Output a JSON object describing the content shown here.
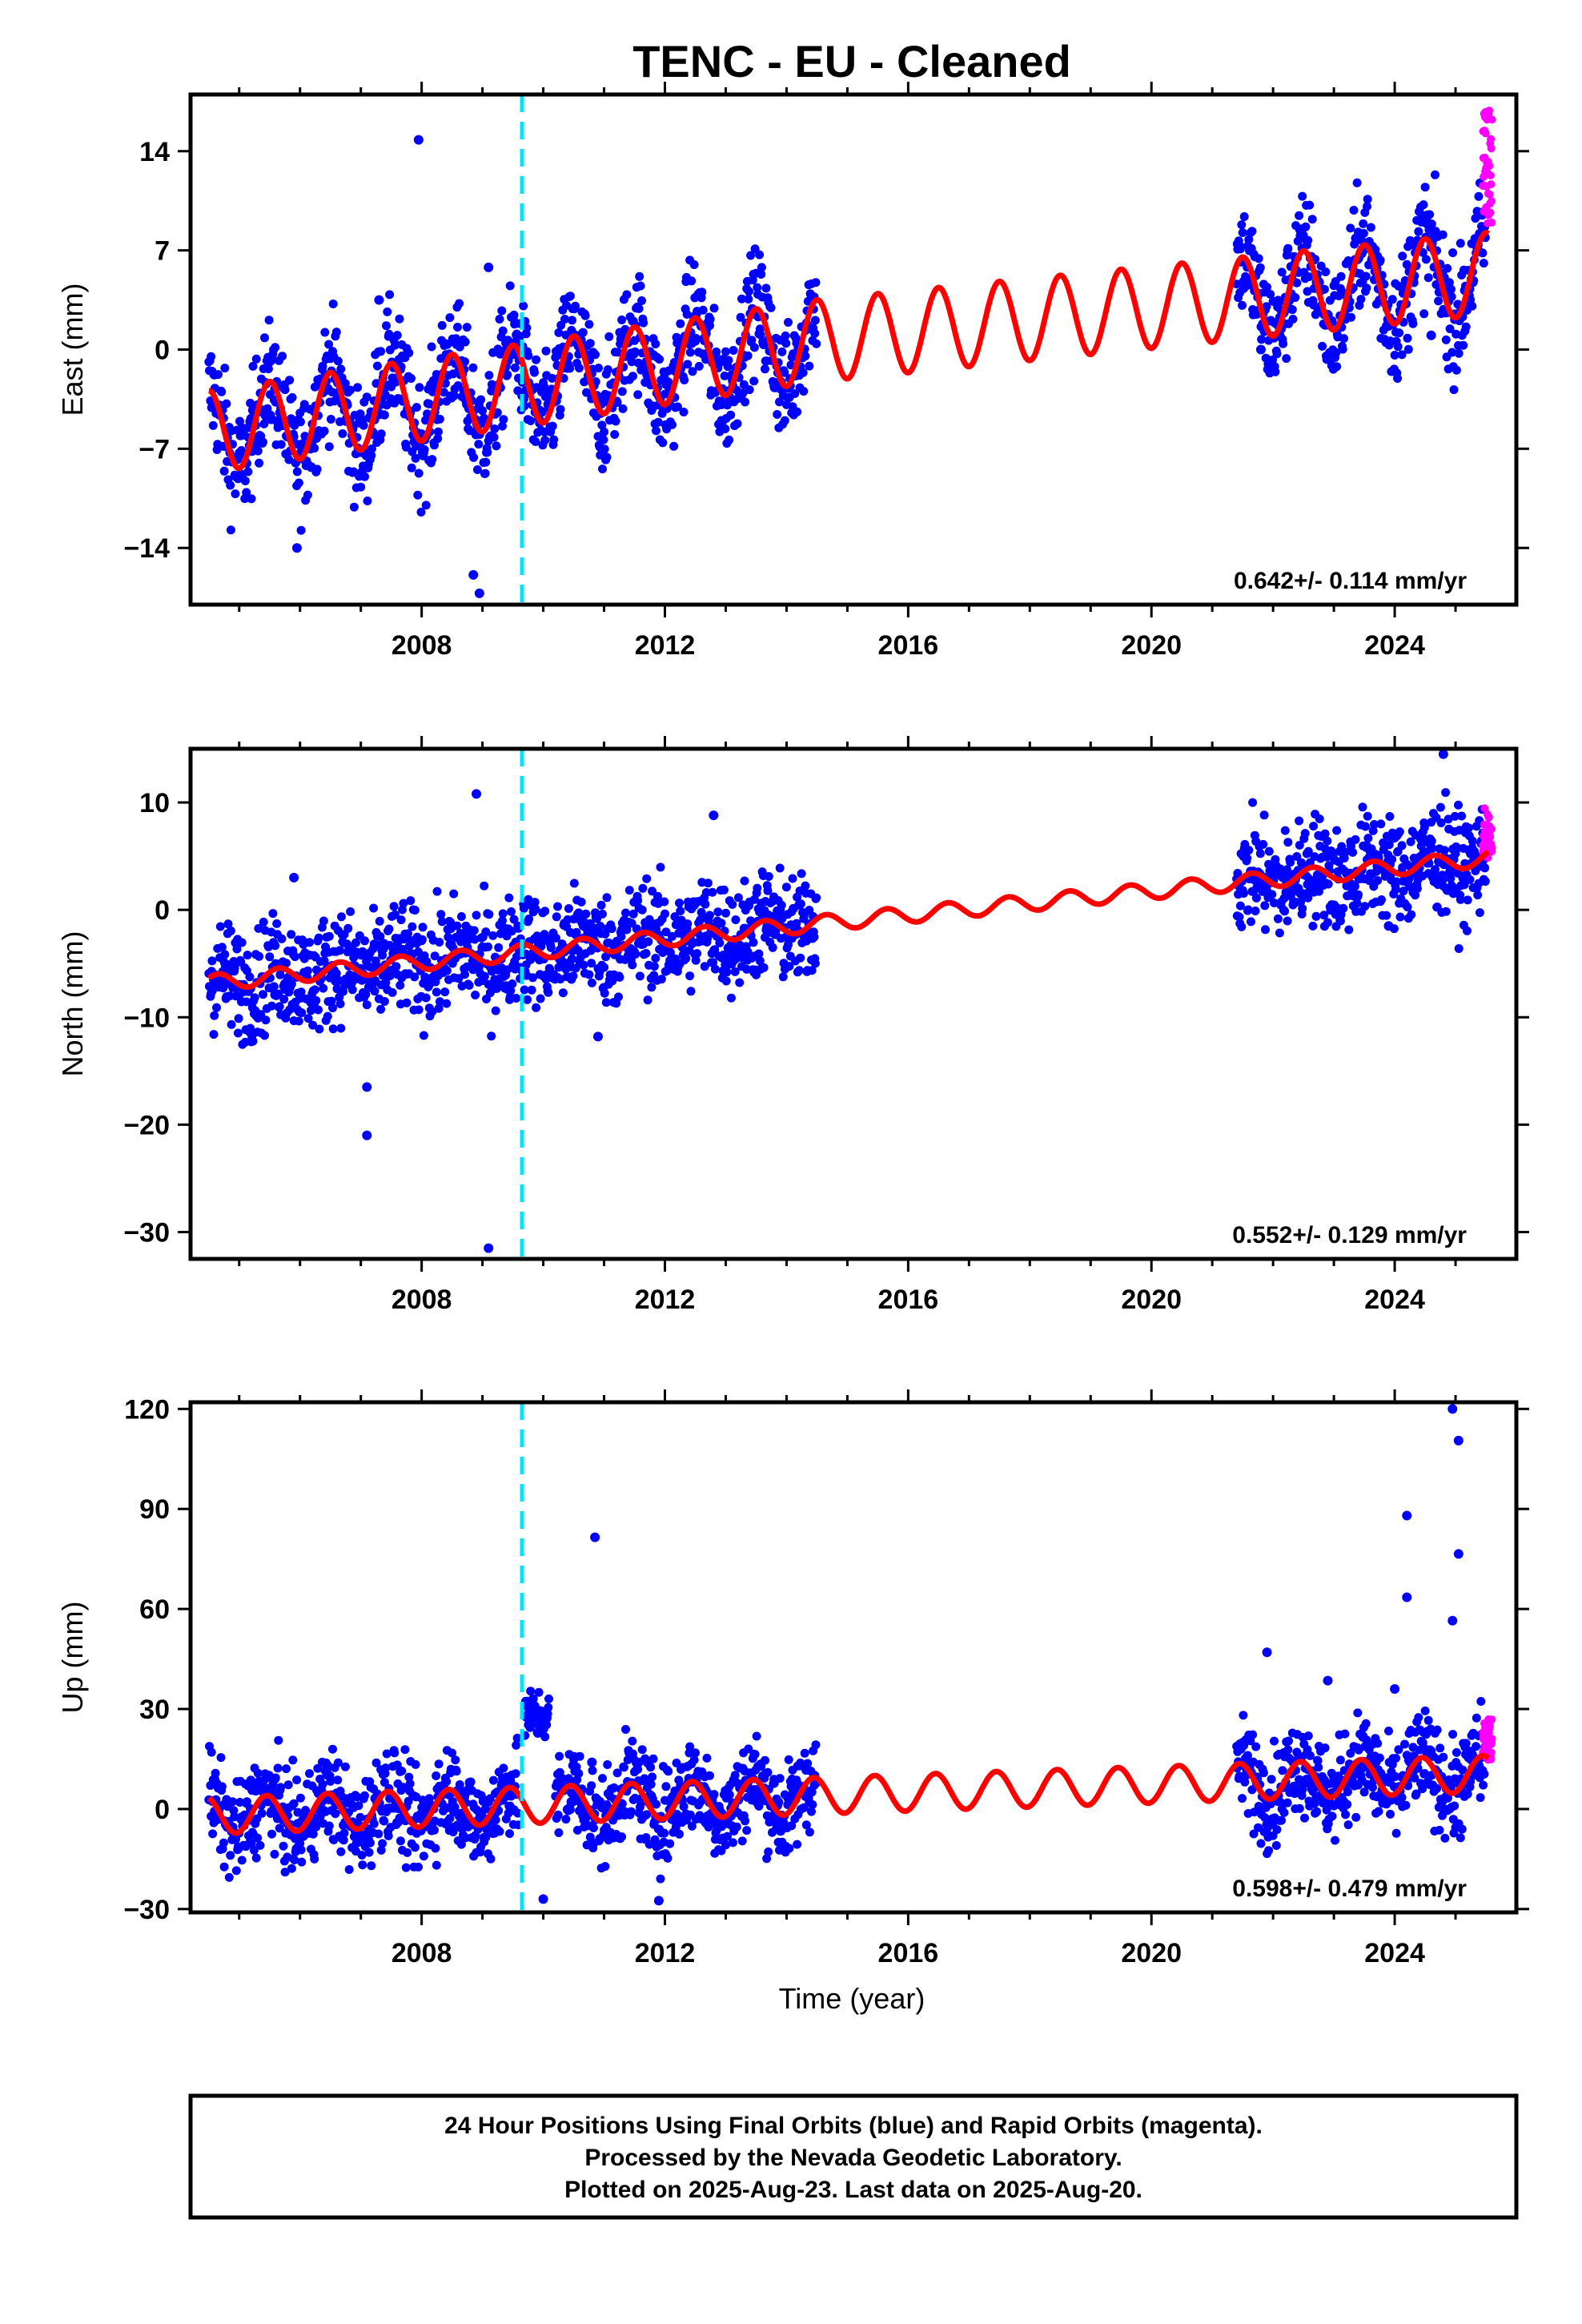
{
  "title": "TENC  - EU - Cleaned",
  "xlabel": "Time (year)",
  "footer": {
    "line1": "24 Hour Positions Using Final Orbits (blue) and Rapid Orbits (magenta).",
    "line2": "Processed by the Nevada Geodetic Laboratory.",
    "line3": "Plotted on 2025-Aug-23. Last data on 2025-Aug-20."
  },
  "colors": {
    "final_orbits": "#0000ff",
    "rapid_orbits": "#ff00ff",
    "model": "#ff0000",
    "event_line": "#00e5ff",
    "frame": "#000000"
  },
  "chart_data": [
    {
      "type": "scatter",
      "ylabel": "East (mm)",
      "xlim": [
        2004.2,
        2026.0
      ],
      "ylim": [
        -18,
        18
      ],
      "x_ticks": [
        2008,
        2012,
        2016,
        2020,
        2024
      ],
      "y_ticks": [
        14,
        7,
        0,
        -7,
        -14
      ],
      "y_tick_labels": [
        "14",
        "7",
        "0",
        "−7",
        "−14"
      ],
      "rate": "0.642+/- 0.114 mm/yr",
      "event_line_x": 2009.65,
      "series": [
        {
          "kind": "final",
          "segments": [
            {
              "x": [
                2004.5,
                2005.0,
                2005.5,
                2006.0,
                2006.5,
                2007.0,
                2007.5,
                2008.0,
                2008.5,
                2009.0,
                2009.5,
                2010.0,
                2010.5,
                2011.0,
                2011.5,
                2012.0,
                2012.5,
                2013.0,
                2013.5,
                2014.0,
                2014.5
              ],
              "y": [
                -3.5,
                -8.5,
                -3.0,
                -7.5,
                -2.0,
                -7.0,
                -1.5,
                -6.5,
                -1.0,
                -6.0,
                -0.5,
                -3.5,
                2.0,
                -3.0,
                2.5,
                -2.5,
                3.0,
                -2.0,
                3.5,
                -1.5,
                4.0
              ]
            },
            {
              "x": [
                2021.4,
                2021.8,
                2022.3,
                2022.8,
                2023.3,
                2023.8,
                2024.3,
                2024.8,
                2025.3,
                2025.5
              ],
              "y": [
                8.5,
                3.5,
                9.5,
                4.5,
                10.0,
                5.0,
                10.5,
                5.5,
                11.0,
                10.0
              ]
            }
          ],
          "spread": 2.0
        },
        {
          "kind": "rapid",
          "x": [
            2025.45,
            2025.5,
            2025.55,
            2025.6
          ],
          "y": [
            8.5,
            11.0,
            13.5,
            17.0
          ]
        }
      ],
      "outliers": [
        {
          "x": 2007.95,
          "y": 14.8
        },
        {
          "x": 2007.3,
          "y": 3.5
        },
        {
          "x": 2009.1,
          "y": 5.8
        },
        {
          "x": 2008.85,
          "y": -15.9
        },
        {
          "x": 2008.95,
          "y": -17.2
        },
        {
          "x": 2005.95,
          "y": -14.0
        },
        {
          "x": 2024.6,
          "y": 1.0
        },
        {
          "x": 2021.8,
          "y": 0.0
        }
      ],
      "model": {
        "t0": 2004.5,
        "offset": -5.8,
        "rate": 0.642,
        "amplitude": 2.9,
        "phase": 0.25,
        "tail_offset": 1.6,
        "tail_rate": 0.43,
        "tail_start": 2014.5,
        "gaps": []
      }
    },
    {
      "type": "scatter",
      "ylabel": "North (mm)",
      "xlim": [
        2004.2,
        2026.0
      ],
      "ylim": [
        -32.5,
        15
      ],
      "x_ticks": [
        2008,
        2012,
        2016,
        2020,
        2024
      ],
      "y_ticks": [
        10,
        0,
        -10,
        -20,
        -30
      ],
      "y_tick_labels": [
        "10",
        "0",
        "−10",
        "−20",
        "−30"
      ],
      "rate": "0.552+/- 0.129 mm/yr",
      "event_line_x": 2009.65,
      "series": [
        {
          "kind": "final",
          "segments": [
            {
              "x": [
                2004.5,
                2006.0,
                2008.0,
                2009.6,
                2010.0,
                2012.0,
                2014.5
              ],
              "y": [
                -6.5,
                -6.2,
                -4.8,
                -3.0,
                -2.0,
                -0.5,
                0.8
              ]
            },
            {
              "x": [
                2021.4,
                2023.0,
                2025.5
              ],
              "y": [
                4.8,
                5.5,
                6.8
              ]
            }
          ],
          "spread": 2.5
        },
        {
          "kind": "rapid",
          "x": [
            2025.45,
            2025.5,
            2025.55,
            2025.6
          ],
          "y": [
            4.5,
            6.5,
            8.0,
            9.5
          ]
        }
      ],
      "outliers": [
        {
          "x": 2007.1,
          "y": -16.5
        },
        {
          "x": 2007.1,
          "y": -21.0
        },
        {
          "x": 2008.9,
          "y": 10.8
        },
        {
          "x": 2009.1,
          "y": -31.5
        },
        {
          "x": 2010.9,
          "y": -11.8
        },
        {
          "x": 2012.8,
          "y": 8.8
        },
        {
          "x": 2024.8,
          "y": 14.5
        },
        {
          "x": 2023.9,
          "y": -1.5
        },
        {
          "x": 2005.9,
          "y": 3.0
        }
      ],
      "model": {
        "t0": 2004.5,
        "offset": -6.8,
        "rate": 0.552,
        "amplitude": 0.75,
        "phase": 0.1,
        "tail_offset": 0.0,
        "tail_rate": 0.0,
        "tail_start": 2014.5,
        "gaps": []
      }
    },
    {
      "type": "scatter",
      "ylabel": "Up (mm)",
      "xlim": [
        2004.2,
        2026.0
      ],
      "ylim": [
        -31,
        122
      ],
      "x_ticks": [
        2008,
        2012,
        2016,
        2020,
        2024
      ],
      "y_ticks": [
        120,
        90,
        60,
        30,
        0,
        -30
      ],
      "y_tick_labels": [
        "120",
        "90",
        "60",
        "30",
        "0",
        "−30"
      ],
      "rate": "0.598+/- 0.479 mm/yr",
      "event_line_x": 2009.65,
      "series": [
        {
          "kind": "final",
          "segments": [
            {
              "x": [
                2004.5,
                2006.0,
                2008.0,
                2009.6
              ],
              "y": [
                -2.0,
                -2.5,
                -3.0,
                -2.5
              ]
            },
            {
              "x": [
                2009.7,
                2009.9,
                2010.1
              ],
              "y": [
                28.0,
                28.5,
                26.0
              ]
            },
            {
              "x": [
                2010.2,
                2012.0,
                2014.5
              ],
              "y": [
                -5.0,
                -7.0,
                -8.0
              ]
            },
            {
              "x": [
                2021.4,
                2023.0,
                2025.5
              ],
              "y": [
                11.0,
                12.0,
                10.0
              ]
            }
          ],
          "spread": 7.0
        },
        {
          "kind": "rapid",
          "x": [
            2025.45,
            2025.5,
            2025.55,
            2025.6
          ],
          "y": [
            14.0,
            20.0,
            24.0,
            27.0
          ]
        }
      ],
      "outliers": [
        {
          "x": 2010.85,
          "y": 81.5
        },
        {
          "x": 2021.9,
          "y": 47.0
        },
        {
          "x": 2024.2,
          "y": 88.0
        },
        {
          "x": 2024.2,
          "y": 63.5
        },
        {
          "x": 2024.95,
          "y": 120.0
        },
        {
          "x": 2025.05,
          "y": 110.5
        },
        {
          "x": 2025.05,
          "y": 76.5
        },
        {
          "x": 2024.95,
          "y": 56.5
        },
        {
          "x": 2010.8,
          "y": 14.0
        },
        {
          "x": 2011.9,
          "y": -27.5
        },
        {
          "x": 2010.0,
          "y": -27.0
        },
        {
          "x": 2024.0,
          "y": 36.0
        },
        {
          "x": 2022.9,
          "y": 38.5
        }
      ],
      "model": {
        "t0": 2004.5,
        "offset": -2.0,
        "rate": 0.598,
        "amplitude": 5.5,
        "phase": 0.3,
        "tail_offset": 0.0,
        "tail_rate": 0.0,
        "tail_start": 2014.5,
        "gaps": []
      }
    }
  ]
}
